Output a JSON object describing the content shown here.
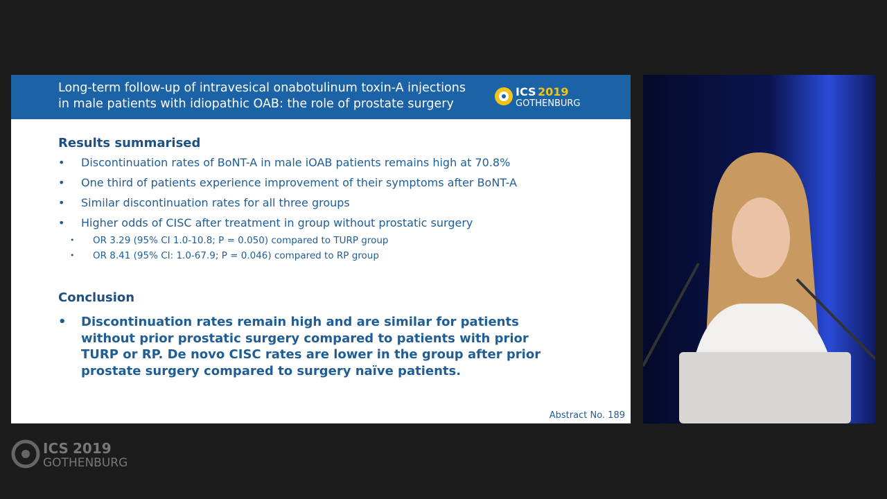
{
  "slide": {
    "header": {
      "title_lines": [
        "Long-term follow-up of intravesical onabotulinum toxin-A injections",
        "in male patients with idiopathic OAB: the role of prostate surgery"
      ],
      "logo": {
        "brand": "ICS",
        "year": "2019",
        "city": "GOTHENBURG"
      }
    },
    "sections": [
      {
        "heading": "Results summarised",
        "bullets": [
          {
            "text": "Discontinuation rates of BoNT-A in male iOAB patients remains high at 70.8%"
          },
          {
            "text": "One third of patients experience improvement of their symptoms after BoNT-A"
          },
          {
            "text": "Similar discontinuation rates for all three groups"
          },
          {
            "text": "Higher odds of CISC after treatment in group without prostatic surgery",
            "sub": [
              "OR 3.29 (95% CI 1.0-10.8; P = 0.050) compared to TURP group",
              "OR 8.41 (95% CI: 1.0-67.9; P = 0.046) compared to RP group"
            ]
          }
        ]
      },
      {
        "heading": "Conclusion",
        "bullets": [
          {
            "text": "Discontinuation rates remain high and are similar for patients without prior prostatic surgery compared to patients with prior TURP or RP. De novo CISC rates are lower in the group after prior prostate surgery compared to surgery naïve patients."
          }
        ]
      }
    ],
    "footer": "Abstract No. 189"
  },
  "watermark": {
    "brand": "ICS",
    "year": "2019",
    "city": "GOTHENBURG"
  }
}
